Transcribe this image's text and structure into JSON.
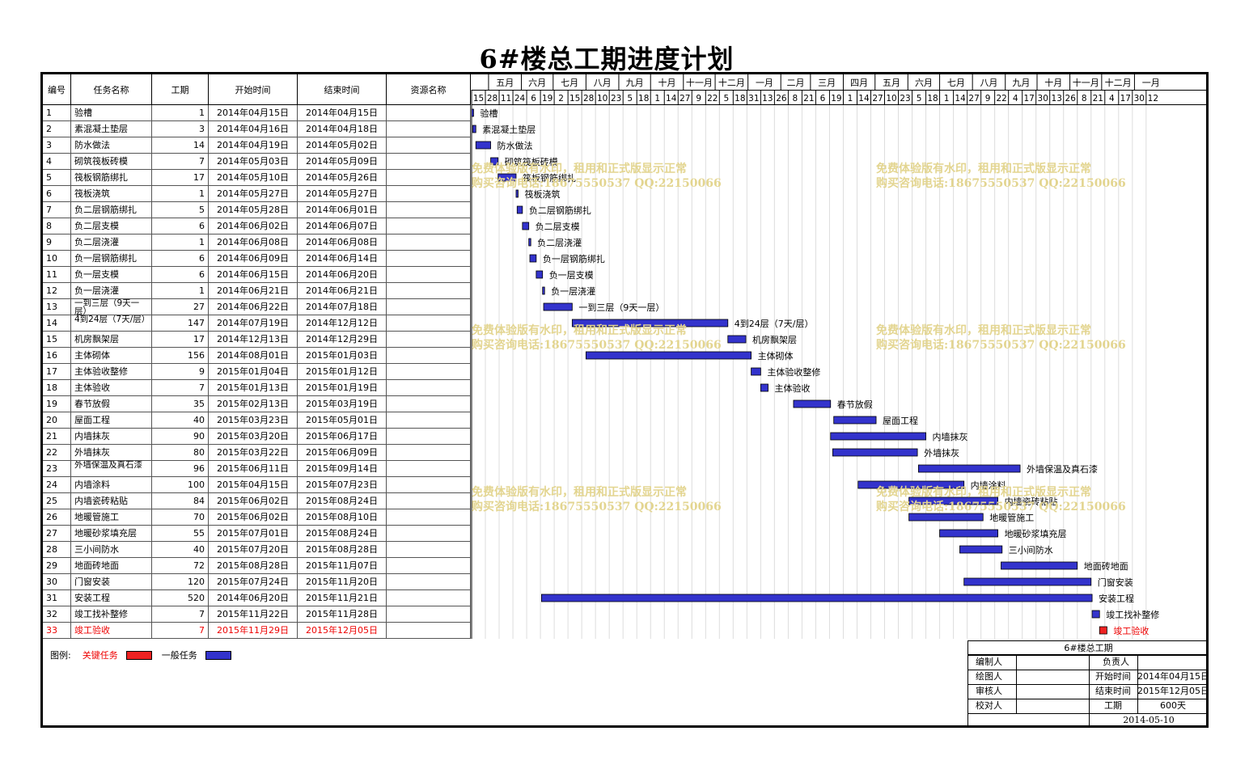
{
  "title": "6#楼总工期进度计划",
  "table": {
    "headers": {
      "id": "编号",
      "task": "任务名称",
      "duration": "工期",
      "start": "开始时间",
      "end": "结束时间",
      "resource": "资源名称"
    }
  },
  "timescale": {
    "months": [
      "五月",
      "六月",
      "七月",
      "八月",
      "九月",
      "十月",
      "十一月",
      "十二月",
      "一月",
      "二月",
      "三月",
      "四月",
      "五月",
      "六月",
      "七月",
      "八月",
      "九月",
      "十月",
      "十一月",
      "十二月",
      "一月"
    ],
    "days": [
      "15",
      "28",
      "11",
      "24",
      "6",
      "19",
      "2",
      "15",
      "28",
      "10",
      "23",
      "5",
      "18",
      "1",
      "14",
      "27",
      "9",
      "22",
      "5",
      "18",
      "31",
      "13",
      "26",
      "8",
      "21",
      "6",
      "19",
      "1",
      "14",
      "27",
      "10",
      "23",
      "5",
      "18",
      "1",
      "14",
      "27",
      "9",
      "22",
      "4",
      "17",
      "30",
      "13",
      "26",
      "8",
      "21",
      "4",
      "17",
      "30",
      "12"
    ]
  },
  "chart_data": {
    "type": "gantt",
    "tasks": [
      {
        "id": "1",
        "name": "验槽",
        "duration": "1",
        "start": "2014年04月15日",
        "end": "2014年04月15日",
        "s": "2014-04-15",
        "e": "2014-04-15",
        "bar_label": "验槽",
        "critical": false
      },
      {
        "id": "2",
        "name": "素混凝土垫层",
        "duration": "3",
        "start": "2014年04月16日",
        "end": "2014年04月18日",
        "s": "2014-04-16",
        "e": "2014-04-18",
        "bar_label": "素混凝土垫层",
        "critical": false
      },
      {
        "id": "3",
        "name": "防水做法",
        "duration": "14",
        "start": "2014年04月19日",
        "end": "2014年05月02日",
        "s": "2014-04-19",
        "e": "2014-05-02",
        "bar_label": "防水做法",
        "critical": false
      },
      {
        "id": "4",
        "name": "砌筑筏板砖模",
        "duration": "7",
        "start": "2014年05月03日",
        "end": "2014年05月09日",
        "s": "2014-05-03",
        "e": "2014-05-09",
        "bar_label": "砌筑筏板砖模",
        "critical": false
      },
      {
        "id": "5",
        "name": "筏板钢筋绑扎",
        "duration": "17",
        "start": "2014年05月10日",
        "end": "2014年05月26日",
        "s": "2014-05-10",
        "e": "2014-05-26",
        "bar_label": "筏板钢筋绑扎",
        "critical": false
      },
      {
        "id": "6",
        "name": "筏板浇筑",
        "duration": "1",
        "start": "2014年05月27日",
        "end": "2014年05月27日",
        "s": "2014-05-27",
        "e": "2014-05-27",
        "bar_label": "筏板浇筑",
        "critical": false
      },
      {
        "id": "7",
        "name": "负二层钢筋绑扎",
        "duration": "5",
        "start": "2014年05月28日",
        "end": "2014年06月01日",
        "s": "2014-05-28",
        "e": "2014-06-01",
        "bar_label": "负二层钢筋绑扎",
        "critical": false
      },
      {
        "id": "8",
        "name": "负二层支模",
        "duration": "6",
        "start": "2014年06月02日",
        "end": "2014年06月07日",
        "s": "2014-06-02",
        "e": "2014-06-07",
        "bar_label": "负二层支模",
        "critical": false
      },
      {
        "id": "9",
        "name": "负二层浇灌",
        "duration": "1",
        "start": "2014年06月08日",
        "end": "2014年06月08日",
        "s": "2014-06-08",
        "e": "2014-06-08",
        "bar_label": "负二层浇灌",
        "critical": false
      },
      {
        "id": "10",
        "name": "负一层钢筋绑扎",
        "duration": "6",
        "start": "2014年06月09日",
        "end": "2014年06月14日",
        "s": "2014-06-09",
        "e": "2014-06-14",
        "bar_label": "负一层钢筋绑扎",
        "critical": false
      },
      {
        "id": "11",
        "name": "负一层支模",
        "duration": "6",
        "start": "2014年06月15日",
        "end": "2014年06月20日",
        "s": "2014-06-15",
        "e": "2014-06-20",
        "bar_label": "负一层支模",
        "critical": false
      },
      {
        "id": "12",
        "name": "负一层浇灌",
        "duration": "1",
        "start": "2014年06月21日",
        "end": "2014年06月21日",
        "s": "2014-06-21",
        "e": "2014-06-21",
        "bar_label": "负一层浇灌",
        "critical": false
      },
      {
        "id": "13",
        "name": "一到三层（9天一层）",
        "duration": "27",
        "start": "2014年06月22日",
        "end": "2014年07月18日",
        "s": "2014-06-22",
        "e": "2014-07-18",
        "bar_label": "一到三层（9天一层）",
        "critical": false
      },
      {
        "id": "14",
        "name": "4到24层（7天/层）",
        "duration": "147",
        "start": "2014年07月19日",
        "end": "2014年12月12日",
        "s": "2014-07-19",
        "e": "2014-12-12",
        "bar_label": "4到24层（7天/层）",
        "critical": false
      },
      {
        "id": "15",
        "name": "机房飘架层",
        "duration": "17",
        "start": "2014年12月13日",
        "end": "2014年12月29日",
        "s": "2014-12-13",
        "e": "2014-12-29",
        "bar_label": "机房飘架层",
        "critical": false
      },
      {
        "id": "16",
        "name": "主体砌体",
        "duration": "156",
        "start": "2014年08月01日",
        "end": "2015年01月03日",
        "s": "2014-08-01",
        "e": "2015-01-03",
        "bar_label": "主体砌体",
        "critical": false
      },
      {
        "id": "17",
        "name": "主体验收整修",
        "duration": "9",
        "start": "2015年01月04日",
        "end": "2015年01月12日",
        "s": "2015-01-04",
        "e": "2015-01-12",
        "bar_label": "主体验收整修",
        "critical": false
      },
      {
        "id": "18",
        "name": "主体验收",
        "duration": "7",
        "start": "2015年01月13日",
        "end": "2015年01月19日",
        "s": "2015-01-13",
        "e": "2015-01-19",
        "bar_label": "主体验收",
        "critical": false
      },
      {
        "id": "19",
        "name": "春节放假",
        "duration": "35",
        "start": "2015年02月13日",
        "end": "2015年03月19日",
        "s": "2015-02-13",
        "e": "2015-03-19",
        "bar_label": "春节放假",
        "critical": false
      },
      {
        "id": "20",
        "name": "屋面工程",
        "duration": "40",
        "start": "2015年03月23日",
        "end": "2015年05月01日",
        "s": "2015-03-23",
        "e": "2015-05-01",
        "bar_label": "屋面工程",
        "critical": false
      },
      {
        "id": "21",
        "name": "内墙抹灰",
        "duration": "90",
        "start": "2015年03月20日",
        "end": "2015年06月17日",
        "s": "2015-03-20",
        "e": "2015-06-17",
        "bar_label": "内墙抹灰",
        "critical": false
      },
      {
        "id": "22",
        "name": "外墙抹灰",
        "duration": "80",
        "start": "2015年03月22日",
        "end": "2015年06月09日",
        "s": "2015-03-22",
        "e": "2015-06-09",
        "bar_label": "外墙抹灰",
        "critical": false
      },
      {
        "id": "23",
        "name": "外墙保温及真石漆",
        "duration": "96",
        "start": "2015年06月11日",
        "end": "2015年09月14日",
        "s": "2015-06-11",
        "e": "2015-09-14",
        "bar_label": "外墙保温及真石漆",
        "critical": false
      },
      {
        "id": "24",
        "name": "内墙涂料",
        "duration": "100",
        "start": "2015年04月15日",
        "end": "2015年07月23日",
        "s": "2015-04-15",
        "e": "2015-07-23",
        "bar_label": "内墙涂料",
        "critical": false
      },
      {
        "id": "25",
        "name": "内墙瓷砖粘贴",
        "duration": "84",
        "start": "2015年06月02日",
        "end": "2015年08月24日",
        "s": "2015-06-02",
        "e": "2015-08-24",
        "bar_label": "内墙瓷砖粘贴",
        "critical": false
      },
      {
        "id": "26",
        "name": "地暖管施工",
        "duration": "70",
        "start": "2015年06月02日",
        "end": "2015年08月10日",
        "s": "2015-06-02",
        "e": "2015-08-10",
        "bar_label": "地暖管施工",
        "critical": false
      },
      {
        "id": "27",
        "name": "地暖砂浆填充层",
        "duration": "55",
        "start": "2015年07月01日",
        "end": "2015年08月24日",
        "s": "2015-07-01",
        "e": "2015-08-24",
        "bar_label": "地暖砂浆填充层",
        "critical": false
      },
      {
        "id": "28",
        "name": "三小间防水",
        "duration": "40",
        "start": "2015年07月20日",
        "end": "2015年08月28日",
        "s": "2015-07-20",
        "e": "2015-08-28",
        "bar_label": "三小间防水",
        "critical": false
      },
      {
        "id": "29",
        "name": "地面砖地面",
        "duration": "72",
        "start": "2015年08月28日",
        "end": "2015年11月07日",
        "s": "2015-08-28",
        "e": "2015-11-07",
        "bar_label": "地面砖地面",
        "critical": false
      },
      {
        "id": "30",
        "name": "门窗安装",
        "duration": "120",
        "start": "2015年07月24日",
        "end": "2015年11月20日",
        "s": "2015-07-24",
        "e": "2015-11-20",
        "bar_label": "门窗安装",
        "critical": false
      },
      {
        "id": "31",
        "name": "安装工程",
        "duration": "520",
        "start": "2014年06月20日",
        "end": "2015年11月21日",
        "s": "2014-06-20",
        "e": "2015-11-21",
        "bar_label": "安装工程",
        "critical": false
      },
      {
        "id": "32",
        "name": "竣工找补整修",
        "duration": "7",
        "start": "2015年11月22日",
        "end": "2015年11月28日",
        "s": "2015-11-22",
        "e": "2015-11-28",
        "bar_label": "竣工找补整修",
        "critical": false
      },
      {
        "id": "33",
        "name": "竣工验收",
        "duration": "7",
        "start": "2015年11月29日",
        "end": "2015年12月05日",
        "s": "2015-11-29",
        "e": "2015-12-05",
        "bar_label": "竣工验收",
        "critical": true
      }
    ],
    "colors": {
      "normal": "#3333cc",
      "critical": "#ee2222"
    }
  },
  "watermarks": [
    {
      "line1": "免费体验版有水印，租用和正式版显示正常",
      "line2": "购买咨询电话:18675550537 QQ:22150066"
    },
    {
      "line1": "免费体验版有水印，租用和正式版显示正常",
      "line2": "购买咨询电话:18675550537 QQ:22150066"
    },
    {
      "line1": "免费体验版有水印，租用和正式版显示正常",
      "line2": "购买咨询电话:18675550537 QQ:22150066"
    },
    {
      "line1": "免费体验版有水印，租用和正式版显示正常",
      "line2": "购买咨询电话:18675550537 QQ:22150066"
    },
    {
      "line1": "免费体验版有水印，租用和正式版显示正常",
      "line2": "购买咨询电话:18675550537 QQ:22150066"
    },
    {
      "line1": "免费体验版有水印，租用和正式版显示正常",
      "line2": "购买咨询电话:18675550537 QQ:22150066"
    }
  ],
  "legend": {
    "label": "图例:",
    "critical": "关键任务",
    "normal": "一般任务"
  },
  "title_block": {
    "project": "6#楼总工期",
    "compiled_by": "编制人",
    "owner": "负责人",
    "drawn_by": "绘图人",
    "start_label": "开始时间",
    "start_value": "2014年04月15日",
    "reviewed_by": "审核人",
    "end_label": "结束时间",
    "end_value": "2015年12月05日",
    "checked_by": "校对人",
    "duration_label": "工期",
    "duration_value": "600天",
    "date": "2014-05-10"
  }
}
